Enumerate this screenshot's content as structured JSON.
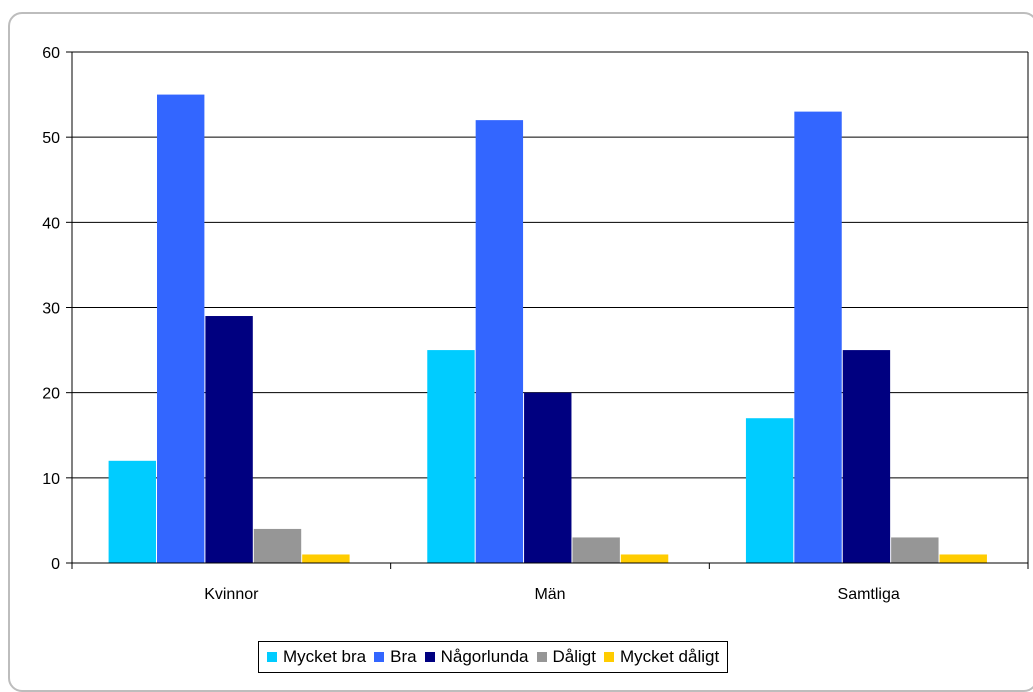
{
  "page_title": "",
  "chart_data": {
    "type": "bar",
    "categories": [
      "Kvinnor",
      "Män",
      "Samtliga"
    ],
    "series": [
      {
        "name": "Mycket bra",
        "color": "#00ccff",
        "values": [
          12,
          25,
          17
        ]
      },
      {
        "name": "Bra",
        "color": "#3366ff",
        "values": [
          55,
          52,
          53
        ]
      },
      {
        "name": "Någorlunda",
        "color": "#000080",
        "values": [
          29,
          20,
          25
        ]
      },
      {
        "name": "Dåligt",
        "color": "#969696",
        "values": [
          4,
          3,
          3
        ]
      },
      {
        "name": "Mycket dåligt",
        "color": "#ffcc00",
        "values": [
          1,
          1,
          1
        ]
      }
    ],
    "ylim": [
      0,
      60
    ],
    "yticks": [
      0,
      10,
      20,
      30,
      40,
      50,
      60
    ],
    "grid": true,
    "legend": "bottom",
    "title": "",
    "xlabel": "",
    "ylabel": ""
  }
}
